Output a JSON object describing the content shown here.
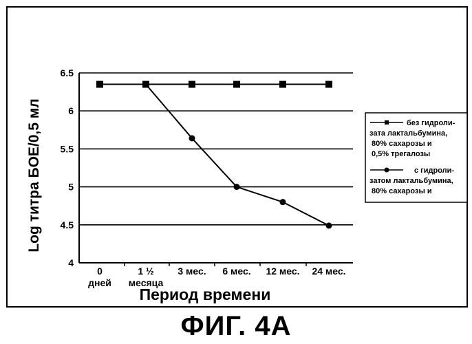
{
  "figure_caption": "ФИГ. 4А",
  "chart_data": {
    "type": "line",
    "xlabel": "Период времени",
    "ylabel": "Log титра БОЕ/0,5 мл",
    "ylim": [
      4,
      6.5
    ],
    "yticks": [
      "4",
      "4.5",
      "5",
      "5.5",
      "6",
      "6.5"
    ],
    "grid": "horizontal",
    "legend_position": "right",
    "categories": [
      [
        "0",
        "дней"
      ],
      [
        "1 ½",
        "месяца"
      ],
      [
        "3 мес."
      ],
      [
        "6 мес."
      ],
      [
        "12 мес."
      ],
      [
        "24 мес."
      ]
    ],
    "series": [
      {
        "marker": "square",
        "legend_lines": [
          "без гидроли-",
          "зата лактальбумина,",
          "80% сахарозы и",
          "0,5% трегалозы"
        ],
        "values": [
          6.35,
          6.35,
          6.35,
          6.35,
          6.35,
          6.35
        ]
      },
      {
        "marker": "circle",
        "legend_lines": [
          "с гидроли-",
          "затом лактальбумина,",
          "80% сахарозы и"
        ],
        "values": [
          null,
          6.35,
          5.64,
          5.0,
          4.8,
          4.49
        ]
      }
    ]
  }
}
